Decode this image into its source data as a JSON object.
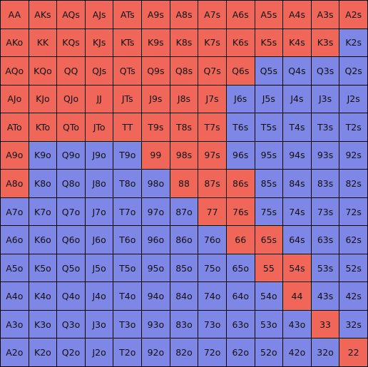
{
  "colors": {
    "raise": "#f0675a",
    "fold": "#7f87e6"
  },
  "rows": [
    {
      "cells": [
        {
          "l": "AA",
          "r": 1
        },
        {
          "l": "AKs",
          "r": 1
        },
        {
          "l": "AQs",
          "r": 1
        },
        {
          "l": "AJs",
          "r": 1
        },
        {
          "l": "ATs",
          "r": 1
        },
        {
          "l": "A9s",
          "r": 1
        },
        {
          "l": "A8s",
          "r": 1
        },
        {
          "l": "A7s",
          "r": 1
        },
        {
          "l": "A6s",
          "r": 1
        },
        {
          "l": "A5s",
          "r": 1
        },
        {
          "l": "A4s",
          "r": 1
        },
        {
          "l": "A3s",
          "r": 1
        },
        {
          "l": "A2s",
          "r": 1
        }
      ]
    },
    {
      "cells": [
        {
          "l": "AKo",
          "r": 1
        },
        {
          "l": "KK",
          "r": 1
        },
        {
          "l": "KQs",
          "r": 1
        },
        {
          "l": "KJs",
          "r": 1
        },
        {
          "l": "KTs",
          "r": 1
        },
        {
          "l": "K9s",
          "r": 1
        },
        {
          "l": "K8s",
          "r": 1
        },
        {
          "l": "K7s",
          "r": 1
        },
        {
          "l": "K6s",
          "r": 1
        },
        {
          "l": "K5s",
          "r": 1
        },
        {
          "l": "K4s",
          "r": 1
        },
        {
          "l": "K3s",
          "r": 1
        },
        {
          "l": "K2s",
          "r": 0
        }
      ]
    },
    {
      "cells": [
        {
          "l": "AQo",
          "r": 1
        },
        {
          "l": "KQo",
          "r": 1
        },
        {
          "l": "QQ",
          "r": 1
        },
        {
          "l": "QJs",
          "r": 1
        },
        {
          "l": "QTs",
          "r": 1
        },
        {
          "l": "Q9s",
          "r": 1
        },
        {
          "l": "Q8s",
          "r": 1
        },
        {
          "l": "Q7s",
          "r": 1
        },
        {
          "l": "Q6s",
          "r": 1
        },
        {
          "l": "Q5s",
          "r": 0
        },
        {
          "l": "Q4s",
          "r": 0
        },
        {
          "l": "Q3s",
          "r": 0
        },
        {
          "l": "Q2s",
          "r": 0
        }
      ]
    },
    {
      "cells": [
        {
          "l": "AJo",
          "r": 1
        },
        {
          "l": "KJo",
          "r": 1
        },
        {
          "l": "QJo",
          "r": 1
        },
        {
          "l": "JJ",
          "r": 1
        },
        {
          "l": "JTs",
          "r": 1
        },
        {
          "l": "J9s",
          "r": 1
        },
        {
          "l": "J8s",
          "r": 1
        },
        {
          "l": "J7s",
          "r": 1
        },
        {
          "l": "J6s",
          "r": 0
        },
        {
          "l": "J5s",
          "r": 0
        },
        {
          "l": "J4s",
          "r": 0
        },
        {
          "l": "J3s",
          "r": 0
        },
        {
          "l": "J2s",
          "r": 0
        }
      ]
    },
    {
      "cells": [
        {
          "l": "ATo",
          "r": 1
        },
        {
          "l": "KTo",
          "r": 1
        },
        {
          "l": "QTo",
          "r": 1
        },
        {
          "l": "JTo",
          "r": 1
        },
        {
          "l": "TT",
          "r": 1
        },
        {
          "l": "T9s",
          "r": 1
        },
        {
          "l": "T8s",
          "r": 1
        },
        {
          "l": "T7s",
          "r": 1
        },
        {
          "l": "T6s",
          "r": 0
        },
        {
          "l": "T5s",
          "r": 0
        },
        {
          "l": "T4s",
          "r": 0
        },
        {
          "l": "T3s",
          "r": 0
        },
        {
          "l": "T2s",
          "r": 0
        }
      ]
    },
    {
      "cells": [
        {
          "l": "A9o",
          "r": 1
        },
        {
          "l": "K9o",
          "r": 0
        },
        {
          "l": "Q9o",
          "r": 0
        },
        {
          "l": "J9o",
          "r": 0
        },
        {
          "l": "T9o",
          "r": 0
        },
        {
          "l": "99",
          "r": 1
        },
        {
          "l": "98s",
          "r": 1
        },
        {
          "l": "97s",
          "r": 1
        },
        {
          "l": "96s",
          "r": 0
        },
        {
          "l": "95s",
          "r": 0
        },
        {
          "l": "94s",
          "r": 0
        },
        {
          "l": "93s",
          "r": 0
        },
        {
          "l": "92s",
          "r": 0
        }
      ]
    },
    {
      "cells": [
        {
          "l": "A8o",
          "r": 1
        },
        {
          "l": "K8o",
          "r": 0
        },
        {
          "l": "Q8o",
          "r": 0
        },
        {
          "l": "J8o",
          "r": 0
        },
        {
          "l": "T8o",
          "r": 0
        },
        {
          "l": "98o",
          "r": 0
        },
        {
          "l": "88",
          "r": 1
        },
        {
          "l": "87s",
          "r": 1
        },
        {
          "l": "86s",
          "r": 1
        },
        {
          "l": "85s",
          "r": 0
        },
        {
          "l": "84s",
          "r": 0
        },
        {
          "l": "83s",
          "r": 0
        },
        {
          "l": "82s",
          "r": 0
        }
      ]
    },
    {
      "cells": [
        {
          "l": "A7o",
          "r": 0
        },
        {
          "l": "K7o",
          "r": 0
        },
        {
          "l": "Q7o",
          "r": 0
        },
        {
          "l": "J7o",
          "r": 0
        },
        {
          "l": "T7o",
          "r": 0
        },
        {
          "l": "97o",
          "r": 0
        },
        {
          "l": "87o",
          "r": 0
        },
        {
          "l": "77",
          "r": 1
        },
        {
          "l": "76s",
          "r": 1
        },
        {
          "l": "75s",
          "r": 0
        },
        {
          "l": "74s",
          "r": 0
        },
        {
          "l": "73s",
          "r": 0
        },
        {
          "l": "72s",
          "r": 0
        }
      ]
    },
    {
      "cells": [
        {
          "l": "A6o",
          "r": 0
        },
        {
          "l": "K6o",
          "r": 0
        },
        {
          "l": "Q6o",
          "r": 0
        },
        {
          "l": "J6o",
          "r": 0
        },
        {
          "l": "T6o",
          "r": 0
        },
        {
          "l": "96o",
          "r": 0
        },
        {
          "l": "86o",
          "r": 0
        },
        {
          "l": "76o",
          "r": 0
        },
        {
          "l": "66",
          "r": 1
        },
        {
          "l": "65s",
          "r": 1
        },
        {
          "l": "64s",
          "r": 0
        },
        {
          "l": "63s",
          "r": 0
        },
        {
          "l": "62s",
          "r": 0
        }
      ]
    },
    {
      "cells": [
        {
          "l": "A5o",
          "r": 0
        },
        {
          "l": "K5o",
          "r": 0
        },
        {
          "l": "Q5o",
          "r": 0
        },
        {
          "l": "J5o",
          "r": 0
        },
        {
          "l": "T5o",
          "r": 0
        },
        {
          "l": "95o",
          "r": 0
        },
        {
          "l": "85o",
          "r": 0
        },
        {
          "l": "75o",
          "r": 0
        },
        {
          "l": "65o",
          "r": 0
        },
        {
          "l": "55",
          "r": 1
        },
        {
          "l": "54s",
          "r": 1
        },
        {
          "l": "53s",
          "r": 0
        },
        {
          "l": "52s",
          "r": 0
        }
      ]
    },
    {
      "cells": [
        {
          "l": "A4o",
          "r": 0
        },
        {
          "l": "K4o",
          "r": 0
        },
        {
          "l": "Q4o",
          "r": 0
        },
        {
          "l": "J4o",
          "r": 0
        },
        {
          "l": "T4o",
          "r": 0
        },
        {
          "l": "94o",
          "r": 0
        },
        {
          "l": "84o",
          "r": 0
        },
        {
          "l": "74o",
          "r": 0
        },
        {
          "l": "64o",
          "r": 0
        },
        {
          "l": "54o",
          "r": 0
        },
        {
          "l": "44",
          "r": 1
        },
        {
          "l": "43s",
          "r": 0
        },
        {
          "l": "42s",
          "r": 0
        }
      ]
    },
    {
      "cells": [
        {
          "l": "A3o",
          "r": 0
        },
        {
          "l": "K3o",
          "r": 0
        },
        {
          "l": "Q3o",
          "r": 0
        },
        {
          "l": "J3o",
          "r": 0
        },
        {
          "l": "T3o",
          "r": 0
        },
        {
          "l": "93o",
          "r": 0
        },
        {
          "l": "83o",
          "r": 0
        },
        {
          "l": "73o",
          "r": 0
        },
        {
          "l": "63o",
          "r": 0
        },
        {
          "l": "53o",
          "r": 0
        },
        {
          "l": "43o",
          "r": 0
        },
        {
          "l": "33",
          "r": 1
        },
        {
          "l": "32s",
          "r": 0
        }
      ]
    },
    {
      "cells": [
        {
          "l": "A2o",
          "r": 0
        },
        {
          "l": "K2o",
          "r": 0
        },
        {
          "l": "Q2o",
          "r": 0
        },
        {
          "l": "J2o",
          "r": 0
        },
        {
          "l": "T2o",
          "r": 0
        },
        {
          "l": "92o",
          "r": 0
        },
        {
          "l": "82o",
          "r": 0
        },
        {
          "l": "72o",
          "r": 0
        },
        {
          "l": "62o",
          "r": 0
        },
        {
          "l": "52o",
          "r": 0
        },
        {
          "l": "42o",
          "r": 0
        },
        {
          "l": "32o",
          "r": 0
        },
        {
          "l": "22",
          "r": 1
        }
      ]
    }
  ]
}
